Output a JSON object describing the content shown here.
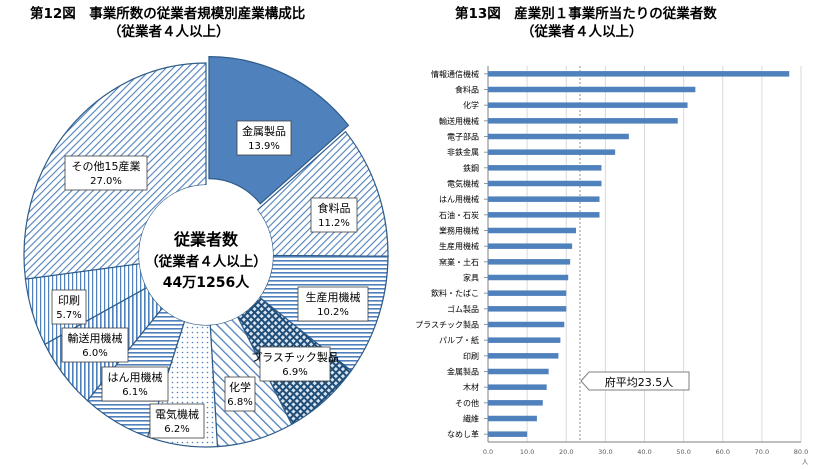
{
  "fig12": {
    "number": "第12図",
    "title": "事業所数の従業者規模別産業構成比",
    "subtitle": "（従業者４人以上）",
    "center_line1": "従業者数",
    "center_line2": "（従業者４人以上）",
    "center_line3": "44万1256人"
  },
  "fig13": {
    "number": "第13図",
    "title": "産業別１事業所当たりの従業者数",
    "subtitle": "（従業者４人以上）",
    "callout": "府平均23.5人",
    "x_unit": "人"
  },
  "chart_data": [
    {
      "type": "pie",
      "variant": "donut",
      "categories": [
        "金属製品",
        "食料品",
        "生産用機械",
        "プラスチック製品",
        "化学",
        "電気機械",
        "はん用機械",
        "輸送用機械",
        "印刷",
        "その他15産業"
      ],
      "value_labels": [
        "13.9%",
        "11.2%",
        "10.2%",
        "6.9%",
        "6.8%",
        "6.2%",
        "6.1%",
        "6.0%",
        "5.7%",
        "27.0%"
      ],
      "values": [
        13.9,
        11.2,
        10.2,
        6.9,
        6.8,
        6.2,
        6.1,
        6.0,
        5.7,
        27.0
      ],
      "exploded": "金属製品",
      "colors": {
        "fill": "#4f81bd",
        "line": "#2e5c8a",
        "background": "#ffffff"
      }
    },
    {
      "type": "bar",
      "orientation": "horizontal",
      "categories": [
        "情報通信機械",
        "食料品",
        "化学",
        "輸送用機械",
        "電子部品",
        "非鉄金属",
        "鉄鋼",
        "電気機械",
        "はん用機械",
        "石油・石炭",
        "業務用機械",
        "生産用機械",
        "窯業・土石",
        "家具",
        "飲料・たばこ",
        "ゴム製品",
        "プラスチック製品",
        "パルプ・紙",
        "印刷",
        "金属製品",
        "木材",
        "その他",
        "繊維",
        "なめし革"
      ],
      "values": [
        77.0,
        53.0,
        51.0,
        48.5,
        36.0,
        32.5,
        29.0,
        29.0,
        28.5,
        28.5,
        22.5,
        21.5,
        21.0,
        20.5,
        20.0,
        20.0,
        19.5,
        18.5,
        18.0,
        15.5,
        15.0,
        14.0,
        12.5,
        10.0
      ],
      "reference_line": 23.5,
      "xlim": [
        0,
        80
      ],
      "x_ticks": [
        "0.0",
        "10.0",
        "20.0",
        "30.0",
        "40.0",
        "50.0",
        "60.0",
        "70.0",
        "80.0"
      ],
      "grid": true,
      "colors": {
        "bar": "#4f81bd",
        "grid": "#d9d9d9"
      }
    }
  ]
}
